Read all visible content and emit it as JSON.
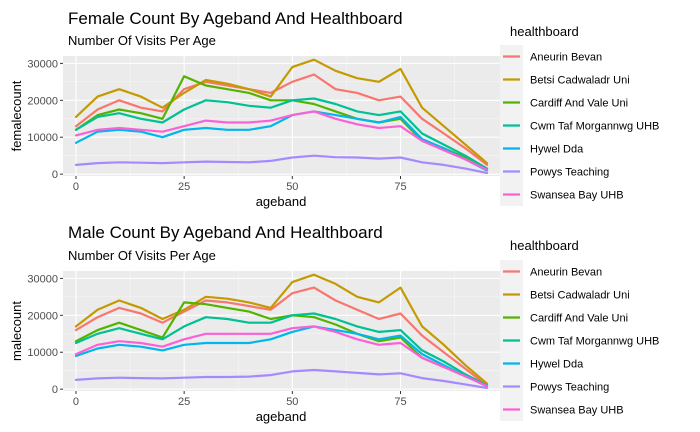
{
  "chart_data": [
    {
      "type": "line",
      "title": "Female Count By Ageband And Healthboard",
      "subtitle": "Number Of Visits Per Age",
      "xlabel": "ageband",
      "ylabel": "femalecount",
      "xlim": [
        -3,
        98
      ],
      "ylim": [
        -500,
        32000
      ],
      "xticks": [
        0,
        25,
        50,
        75
      ],
      "yticks": [
        0,
        10000,
        20000,
        30000
      ],
      "grid": true,
      "legend": {
        "title": "healthboard",
        "placement": "right"
      },
      "x": [
        0,
        5,
        10,
        15,
        20,
        25,
        30,
        35,
        40,
        45,
        50,
        55,
        60,
        65,
        70,
        75,
        80,
        85,
        90,
        95
      ],
      "series": [
        {
          "name": "Aneurin Bevan",
          "color": "#F8766D",
          "values": [
            13000,
            17500,
            20000,
            18000,
            17000,
            23000,
            25000,
            24000,
            23000,
            22000,
            25000,
            27000,
            23000,
            22000,
            20000,
            21000,
            15000,
            11000,
            7000,
            2500
          ]
        },
        {
          "name": "Betsi Cadwaladr Uni",
          "color": "#C49A00",
          "values": [
            15500,
            21000,
            23000,
            21000,
            18000,
            22000,
            25500,
            24500,
            23000,
            21000,
            29000,
            31000,
            28000,
            26000,
            25000,
            28500,
            18000,
            13000,
            8000,
            3000
          ]
        },
        {
          "name": "Cardiff And Vale Uni",
          "color": "#53B400",
          "values": [
            12000,
            16000,
            17500,
            16500,
            15000,
            26500,
            24000,
            23000,
            22000,
            20000,
            20000,
            19000,
            17000,
            15000,
            14000,
            15000,
            9000,
            7000,
            4500,
            1500
          ]
        },
        {
          "name": "Cwm Taf Morgannwg UHB",
          "color": "#00C094",
          "values": [
            12000,
            15500,
            16500,
            15000,
            14000,
            17500,
            20000,
            19500,
            18500,
            18000,
            20000,
            20500,
            19000,
            17000,
            16000,
            17000,
            11000,
            8000,
            5000,
            1500
          ]
        },
        {
          "name": "Hywel Dda",
          "color": "#00B6EB",
          "values": [
            8500,
            11500,
            12000,
            11500,
            10000,
            12000,
            12500,
            12000,
            12000,
            13000,
            16000,
            17000,
            16000,
            15000,
            14000,
            15500,
            9500,
            7000,
            4000,
            1000
          ]
        },
        {
          "name": "Powys Teaching",
          "color": "#A58AFF",
          "values": [
            2500,
            3000,
            3200,
            3100,
            3000,
            3200,
            3400,
            3300,
            3200,
            3600,
            4500,
            5000,
            4600,
            4500,
            4200,
            4500,
            3200,
            2500,
            1500,
            300
          ]
        },
        {
          "name": "Swansea Bay UHB",
          "color": "#FB61D7",
          "values": [
            10500,
            12000,
            12500,
            12000,
            11500,
            13000,
            14500,
            14000,
            14000,
            14500,
            16000,
            17000,
            15000,
            13500,
            12500,
            13000,
            9000,
            6500,
            4000,
            1200
          ]
        }
      ]
    },
    {
      "type": "line",
      "title": "Male Count By Ageband And Healthboard",
      "subtitle": "Number Of Visits Per Age",
      "xlabel": "ageband",
      "ylabel": "malecount",
      "xlim": [
        -3,
        98
      ],
      "ylim": [
        -500,
        32000
      ],
      "xticks": [
        0,
        25,
        50,
        75
      ],
      "yticks": [
        0,
        10000,
        20000,
        30000
      ],
      "grid": true,
      "legend": {
        "title": "healthboard",
        "placement": "right"
      },
      "x": [
        0,
        5,
        10,
        15,
        20,
        25,
        30,
        35,
        40,
        45,
        50,
        55,
        60,
        65,
        70,
        75,
        80,
        85,
        90,
        95
      ],
      "series": [
        {
          "name": "Aneurin Bevan",
          "color": "#F8766D",
          "values": [
            16000,
            19500,
            22000,
            20500,
            18000,
            21000,
            24000,
            23500,
            22500,
            21500,
            26000,
            27500,
            24000,
            21500,
            19000,
            20500,
            14500,
            10000,
            5500,
            1000
          ]
        },
        {
          "name": "Betsi Cadwaladr Uni",
          "color": "#C49A00",
          "values": [
            17000,
            21500,
            24000,
            22000,
            19000,
            21500,
            25000,
            24500,
            23500,
            22000,
            29000,
            31000,
            28500,
            25000,
            23500,
            27500,
            17000,
            12000,
            6500,
            1500
          ]
        },
        {
          "name": "Cardiff And Vale Uni",
          "color": "#53B400",
          "values": [
            13000,
            16000,
            18000,
            16000,
            14000,
            23500,
            23000,
            22000,
            21000,
            19000,
            20000,
            19500,
            17500,
            15000,
            13000,
            14000,
            8500,
            6000,
            3500,
            1000
          ]
        },
        {
          "name": "Cwm Taf Morgannwg UHB",
          "color": "#00C094",
          "values": [
            12500,
            15000,
            16500,
            15000,
            13500,
            17000,
            19500,
            19000,
            18000,
            18000,
            20000,
            20500,
            19000,
            17000,
            15500,
            16000,
            10500,
            7500,
            4000,
            1000
          ]
        },
        {
          "name": "Hywel Dda",
          "color": "#00B6EB",
          "values": [
            9000,
            11000,
            12000,
            11500,
            10500,
            12000,
            12500,
            12500,
            12500,
            13500,
            15500,
            17000,
            16000,
            15000,
            13500,
            14500,
            9500,
            6500,
            3500,
            800
          ]
        },
        {
          "name": "Powys Teaching",
          "color": "#A58AFF",
          "values": [
            2500,
            2900,
            3100,
            3000,
            2900,
            3100,
            3300,
            3300,
            3400,
            3800,
            4800,
            5200,
            4800,
            4400,
            4000,
            4300,
            3000,
            2200,
            1300,
            300
          ]
        },
        {
          "name": "Swansea Bay UHB",
          "color": "#FB61D7",
          "values": [
            9500,
            12000,
            13000,
            12500,
            11500,
            13500,
            15000,
            15000,
            15000,
            15000,
            16500,
            17000,
            15500,
            13500,
            12000,
            12500,
            8500,
            6000,
            3500,
            800
          ]
        }
      ]
    }
  ]
}
